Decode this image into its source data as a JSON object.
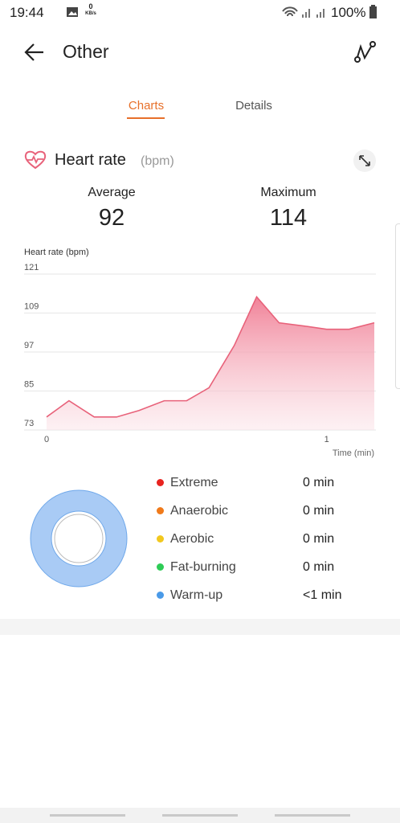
{
  "status_bar": {
    "time": "19:44",
    "speed": "0",
    "speed_unit": "KB/s",
    "battery": "100%"
  },
  "header": {
    "title": "Other"
  },
  "tabs": [
    "Charts",
    "Details"
  ],
  "card": {
    "title": "Heart rate",
    "unit": "(bpm)",
    "stats": [
      {
        "label": "Average",
        "value": "92"
      },
      {
        "label": "Maximum",
        "value": "114"
      }
    ]
  },
  "chart_data": {
    "type": "area",
    "ylabel": "Heart rate (bpm)",
    "xlabel": "Time (min)",
    "x": [
      0,
      0.08,
      0.17,
      0.25,
      0.33,
      0.42,
      0.5,
      0.58,
      0.67,
      0.75,
      0.83,
      0.92,
      1,
      1.08,
      1.17
    ],
    "values": [
      77,
      82,
      77,
      77,
      79,
      82,
      82,
      86,
      99,
      114,
      106,
      105,
      104,
      104,
      106
    ],
    "color": "#e8627a",
    "xlim": [
      0,
      1.17
    ],
    "xticks": [
      0,
      1
    ],
    "ylim": [
      73,
      121
    ],
    "yticks": [
      121,
      109,
      97,
      85,
      73
    ],
    "grid": true
  },
  "zones": [
    {
      "name": "Extreme",
      "color": "#e8231f",
      "time": "0 min"
    },
    {
      "name": "Anaerobic",
      "color": "#f07a1a",
      "time": "0 min"
    },
    {
      "name": "Aerobic",
      "color": "#f2c81e",
      "time": "0 min"
    },
    {
      "name": "Fat-burning",
      "color": "#2ecc56",
      "time": "0 min"
    },
    {
      "name": "Warm-up",
      "color": "#4a9ae8",
      "time": "<1 min"
    }
  ]
}
